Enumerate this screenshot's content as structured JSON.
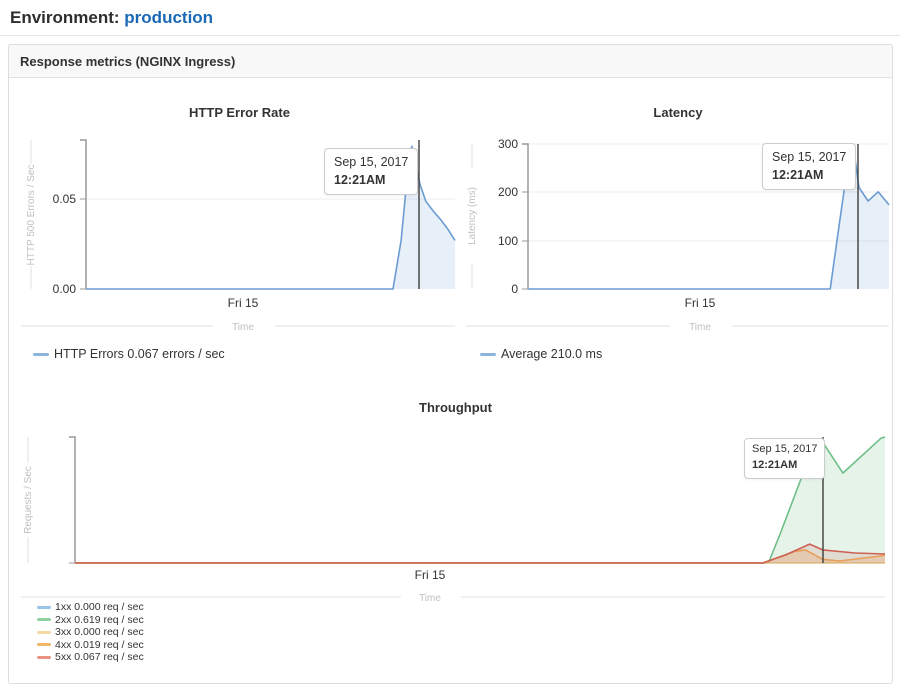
{
  "header": {
    "label": "Environment:",
    "environment": "production"
  },
  "panel": {
    "title": "Response metrics (NGINX Ingress)"
  },
  "tooltip": {
    "date": "Sep 15, 2017",
    "time": "12:21AM"
  },
  "colors": {
    "link": "#1b69b6",
    "http_errors_line": "#6b9bd2",
    "latency_line": "#6b9bd2",
    "s1xx": "#85b1dc",
    "s2xx": "#6fbf87",
    "s3xx": "#f2cf8e",
    "s4xx": "#eda85a",
    "s5xx": "#cc6154"
  },
  "chart_data": [
    {
      "type": "area",
      "title": "HTTP Error Rate",
      "ylabel": "HTTP 500 Errors / Sec",
      "xlabel": "Time",
      "x_tick": "Fri 15",
      "yticks": [
        "0.05",
        "0.00"
      ],
      "ylim": [
        0,
        0.095
      ],
      "cursor": {
        "date": "Sep 15, 2017",
        "time": "12:21AM",
        "value": "0.067 errors / sec"
      },
      "legend": [
        {
          "label": "HTTP Errors 0.067 errors / sec",
          "color": "#8bb3de"
        }
      ],
      "series": [
        {
          "name": "HTTP Errors",
          "color": "#6b9bd2",
          "fill": "rgba(107,155,210,0.16)",
          "points": [
            [
              0,
              0
            ],
            [
              0.832,
              0
            ],
            [
              0.854,
              0.031
            ],
            [
              0.87,
              0.07
            ],
            [
              0.883,
              0.091
            ],
            [
              0.905,
              0.067
            ],
            [
              0.921,
              0.056
            ],
            [
              0.94,
              0.05
            ],
            [
              0.962,
              0.044
            ],
            [
              0.981,
              0.038
            ],
            [
              1,
              0.031
            ]
          ]
        }
      ]
    },
    {
      "type": "area",
      "title": "Latency",
      "ylabel": "Latency (ms)",
      "xlabel": "Time",
      "x_tick": "Fri 15",
      "yticks": [
        "300",
        "200",
        "100",
        "0"
      ],
      "ylim": [
        0,
        300
      ],
      "cursor": {
        "date": "Sep 15, 2017",
        "time": "12:21AM",
        "value": "210.0 ms"
      },
      "legend": [
        {
          "label": "Average 210.0 ms",
          "color": "#8bb3de"
        }
      ],
      "series": [
        {
          "name": "Average",
          "color": "#6b9bd2",
          "fill": "rgba(107,155,210,0.16)",
          "points": [
            [
              0,
              0
            ],
            [
              0.837,
              0
            ],
            [
              0.864,
              143
            ],
            [
              0.886,
              257
            ],
            [
              0.9,
              300
            ],
            [
              0.917,
              210
            ],
            [
              0.942,
              182
            ],
            [
              0.97,
              201
            ],
            [
              1,
              174
            ]
          ]
        }
      ]
    },
    {
      "type": "area",
      "title": "Throughput",
      "ylabel": "Requests / Sec",
      "xlabel": "Time",
      "x_tick": "Fri 15",
      "yticks": [],
      "ylim": [
        0,
        0.645
      ],
      "cursor": {
        "date": "Sep 15, 2017",
        "time": "12:21AM"
      },
      "legend": [
        {
          "label": "1xx 0.000 req / sec",
          "color": "#9dc3e8"
        },
        {
          "label": "2xx 0.619 req / sec",
          "color": "#8fd0a0"
        },
        {
          "label": "3xx 0.000 req / sec",
          "color": "#f5d9a3"
        },
        {
          "label": "4xx 0.019 req / sec",
          "color": "#f0b96a"
        },
        {
          "label": "5xx 0.067 req / sec",
          "color": "#ec9285"
        }
      ],
      "series": [
        {
          "name": "1xx",
          "color": "#85b1dc",
          "points": [
            [
              0,
              0
            ],
            [
              1,
              0
            ]
          ]
        },
        {
          "name": "2xx",
          "color": "#6fbf87",
          "fill": "rgba(111,191,135,0.18)",
          "points": [
            [
              0,
              0
            ],
            [
              0.856,
              0
            ],
            [
              0.87,
              0.143
            ],
            [
              0.899,
              0.46
            ],
            [
              0.923,
              0.619
            ],
            [
              0.948,
              0.46
            ],
            [
              0.995,
              0.639
            ],
            [
              1,
              0.645
            ]
          ]
        },
        {
          "name": "3xx",
          "color": "#f2cf8e",
          "points": [
            [
              0,
              0
            ],
            [
              1,
              0
            ]
          ]
        },
        {
          "name": "4xx",
          "color": "#eda85a",
          "fill": "rgba(237,168,90,0.28)",
          "points": [
            [
              0,
              0
            ],
            [
              0.849,
              0
            ],
            [
              0.889,
              0.06
            ],
            [
              0.902,
              0.067
            ],
            [
              0.923,
              0.019
            ],
            [
              0.944,
              0.01
            ],
            [
              0.994,
              0.036
            ],
            [
              1,
              0.041
            ]
          ]
        },
        {
          "name": "5xx",
          "color": "#cc6154",
          "fill": "rgba(204,97,84,0.16)",
          "points": [
            [
              0,
              0
            ],
            [
              0.849,
              0
            ],
            [
              0.877,
              0.041
            ],
            [
              0.907,
              0.097
            ],
            [
              0.923,
              0.067
            ],
            [
              0.963,
              0.051
            ],
            [
              1,
              0.046
            ]
          ]
        }
      ]
    }
  ]
}
